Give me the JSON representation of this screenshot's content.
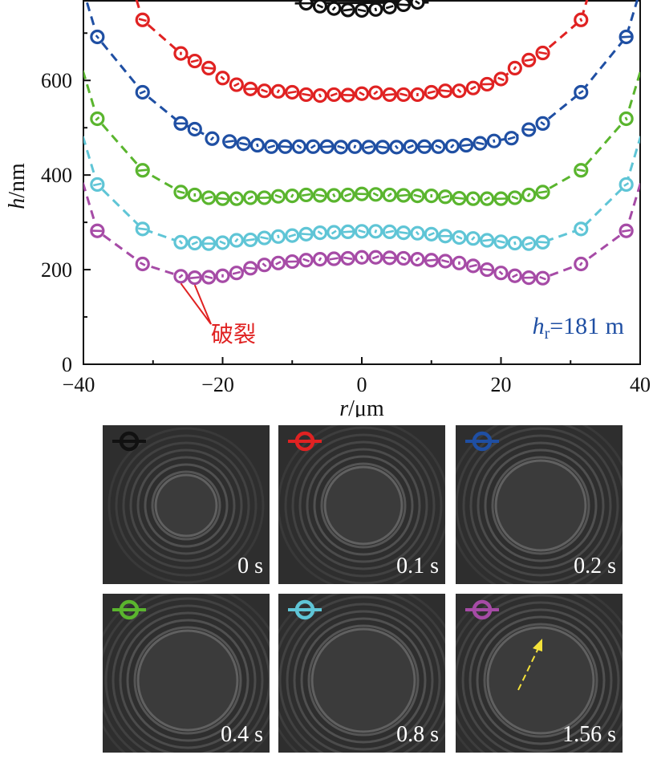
{
  "chart_data": {
    "type": "scatter",
    "xlabel": {
      "var": "r",
      "unit": "/μm"
    },
    "ylabel": {
      "var": "h",
      "unit": "/nm"
    },
    "xlim": [
      -40,
      40
    ],
    "ylim": [
      0,
      770
    ],
    "xticks": [
      -40,
      -20,
      0,
      20,
      40
    ],
    "yticks": [
      0,
      200,
      400,
      600
    ],
    "annotation_rupture": "破裂",
    "annotation_hr": {
      "var": "h",
      "sub": "r",
      "text": "=181 m"
    },
    "series": [
      {
        "time": "0 s",
        "color": "#111111",
        "x": [
          -8,
          -6,
          -4,
          -2,
          0,
          2,
          4,
          6,
          8
        ],
        "y": [
          763,
          757,
          752,
          749,
          748,
          750,
          755,
          760,
          765
        ]
      },
      {
        "time": "0.1 s",
        "color": "#e02222",
        "x": [
          -31.5,
          -26,
          -24,
          -22,
          -20,
          -18,
          -16,
          -14,
          -12,
          -10,
          -8,
          -6,
          -4,
          -2,
          0,
          2,
          4,
          6,
          8,
          10,
          12,
          14,
          16,
          18,
          20,
          22,
          24,
          26,
          31.5
        ],
        "y": [
          728,
          657,
          641,
          626,
          605,
          591,
          582,
          578,
          577,
          575,
          570,
          568,
          570,
          569,
          572,
          574,
          570,
          570,
          570,
          575,
          578,
          578,
          584,
          592,
          603,
          626,
          643,
          658,
          728
        ]
      },
      {
        "time": "0.2 s",
        "color": "#1f4fa3",
        "x": [
          -38,
          -31.5,
          -26,
          -24,
          -21.5,
          -19,
          -17,
          -15,
          -13,
          -11,
          -9,
          -7,
          -5,
          -3,
          -1,
          1,
          3,
          5,
          7,
          9,
          11,
          13,
          15,
          17,
          19,
          21.5,
          24,
          26,
          31.5,
          38
        ],
        "y": [
          692,
          575,
          509,
          497,
          477,
          471,
          466,
          463,
          460,
          460,
          460,
          460,
          460,
          459,
          460,
          459,
          459,
          459,
          460,
          460,
          460,
          461,
          463,
          467,
          472,
          478,
          496,
          509,
          575,
          692
        ]
      },
      {
        "time": "0.4 s",
        "color": "#5ab52e",
        "x": [
          -38,
          -31.5,
          -26,
          -24,
          -22,
          -20,
          -18,
          -16,
          -14,
          -12,
          -10,
          -8,
          -6,
          -4,
          -2,
          0,
          2,
          4,
          6,
          8,
          10,
          12,
          14,
          16,
          18,
          20,
          22,
          24,
          26,
          31.5,
          38
        ],
        "y": [
          519,
          410,
          364,
          358,
          352,
          350,
          350,
          352,
          352,
          355,
          356,
          358,
          357,
          357,
          358,
          360,
          359,
          358,
          357,
          356,
          356,
          354,
          351,
          350,
          350,
          350,
          352,
          358,
          364,
          410,
          519
        ]
      },
      {
        "time": "0.8 s",
        "color": "#5fc5d6",
        "x": [
          -38,
          -31.5,
          -26,
          -24,
          -22,
          -20,
          -18,
          -16,
          -14,
          -12,
          -10,
          -8,
          -6,
          -4,
          -2,
          0,
          2,
          4,
          6,
          8,
          10,
          12,
          14,
          16,
          18,
          20,
          22,
          24,
          26,
          31.5,
          38
        ],
        "y": [
          380,
          286,
          258,
          256,
          255,
          257,
          262,
          263,
          267,
          270,
          272,
          275,
          278,
          279,
          280,
          281,
          281,
          280,
          278,
          277,
          275,
          271,
          268,
          266,
          262,
          259,
          256,
          255,
          258,
          286,
          380
        ]
      },
      {
        "time": "1.56 s",
        "color": "#a64ba6",
        "x": [
          -38,
          -31.5,
          -26,
          -24,
          -22,
          -20,
          -18,
          -16,
          -14,
          -12,
          -10,
          -8,
          -6,
          -4,
          -2,
          0,
          2,
          4,
          6,
          8,
          10,
          12,
          14,
          16,
          18,
          20,
          22,
          24,
          26,
          31.5,
          38
        ],
        "y": [
          282,
          212,
          186,
          183,
          184,
          187,
          193,
          203,
          210,
          214,
          217,
          220,
          222,
          223,
          224,
          226,
          226,
          225,
          224,
          222,
          220,
          218,
          214,
          208,
          200,
          193,
          187,
          183,
          182,
          212,
          282
        ]
      }
    ]
  }
}
